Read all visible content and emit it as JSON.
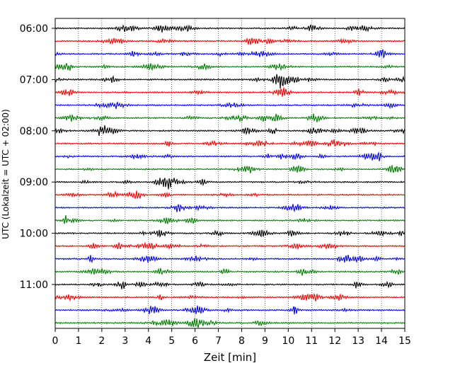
{
  "chart_data": {
    "type": "line",
    "title": "",
    "xlabel": "Zeit  [min]",
    "ylabel": "UTC (Lokalzeit = UTC + 02:00)",
    "xlim": [
      0,
      15
    ],
    "x_ticks": [
      "0",
      "1",
      "2",
      "3",
      "4",
      "5",
      "6",
      "7",
      "8",
      "9",
      "10",
      "11",
      "12",
      "13",
      "14",
      "15"
    ],
    "y_tick_labels": [
      "06:00",
      "07:00",
      "08:00",
      "09:00",
      "10:00",
      "11:00"
    ],
    "y_tick_trace_index": [
      0,
      4,
      8,
      12,
      16,
      20
    ],
    "grid_x": "dotted",
    "trace_interval_minutes": 15,
    "trace_colors": [
      "#000000",
      "#ff0000",
      "#0000ff",
      "#007f00"
    ],
    "traces": [
      {
        "start": "06:00",
        "color": "#000000"
      },
      {
        "start": "06:15",
        "color": "#ff0000"
      },
      {
        "start": "06:30",
        "color": "#0000ff"
      },
      {
        "start": "06:45",
        "color": "#007f00"
      },
      {
        "start": "07:00",
        "color": "#000000"
      },
      {
        "start": "07:15",
        "color": "#ff0000"
      },
      {
        "start": "07:30",
        "color": "#0000ff"
      },
      {
        "start": "07:45",
        "color": "#007f00"
      },
      {
        "start": "08:00",
        "color": "#000000"
      },
      {
        "start": "08:15",
        "color": "#ff0000"
      },
      {
        "start": "08:30",
        "color": "#0000ff"
      },
      {
        "start": "08:45",
        "color": "#007f00"
      },
      {
        "start": "09:00",
        "color": "#000000"
      },
      {
        "start": "09:15",
        "color": "#ff0000"
      },
      {
        "start": "09:30",
        "color": "#0000ff"
      },
      {
        "start": "09:45",
        "color": "#007f00"
      },
      {
        "start": "10:00",
        "color": "#000000"
      },
      {
        "start": "10:15",
        "color": "#ff0000"
      },
      {
        "start": "10:30",
        "color": "#0000ff"
      },
      {
        "start": "10:45",
        "color": "#007f00"
      },
      {
        "start": "11:00",
        "color": "#000000"
      },
      {
        "start": "11:15",
        "color": "#ff0000"
      },
      {
        "start": "11:30",
        "color": "#0000ff"
      },
      {
        "start": "11:45",
        "color": "#007f00"
      }
    ]
  }
}
